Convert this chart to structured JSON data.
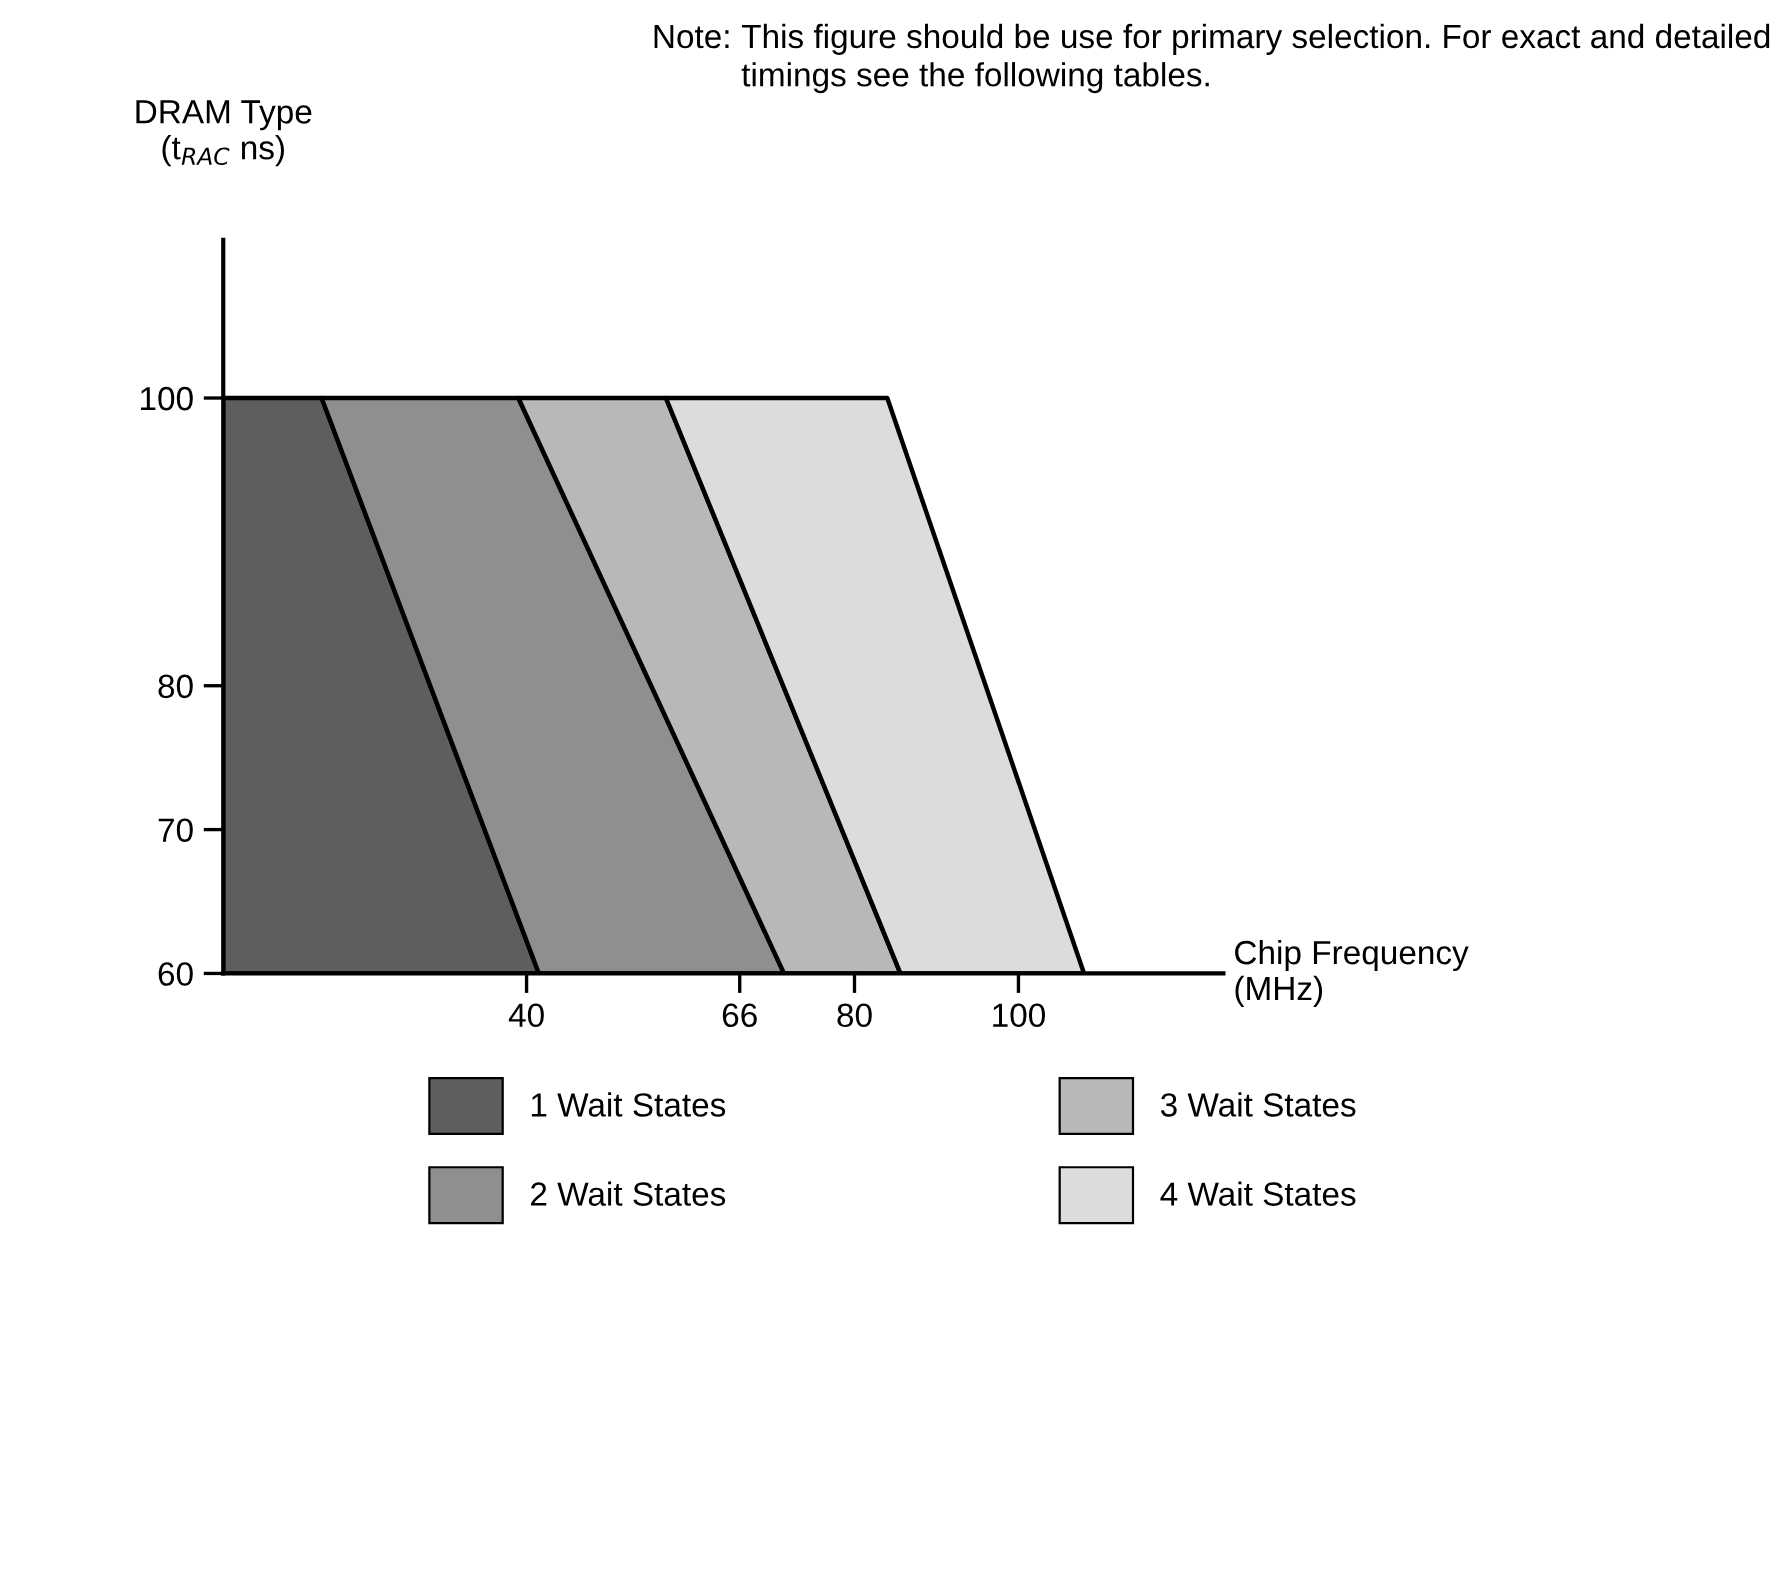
{
  "chart_data": {
    "type": "area",
    "orientation": "horizontal",
    "ylabel": "DRAM Type\n(t$_{RAC}$ ns)",
    "xlabel": "Chip Frequency\n(MHz)",
    "annotations": [
      "Note:",
      "This figure should be use for primary selection. For exact and detailed timings see the following tables."
    ],
    "x": [
      100,
      60
    ],
    "series": [
      {
        "name": "1 Wait States",
        "color": "#5e5e5e",
        "values": [
          15,
          41.5
        ]
      },
      {
        "name": "2 Wait States",
        "color": "#8f8f8f",
        "values": [
          39,
          71.4
        ]
      },
      {
        "name": "3 Wait States",
        "color": "#b8b8b8",
        "values": [
          57,
          85.6
        ]
      },
      {
        "name": "4 Wait States",
        "color": "#dcdcdc",
        "values": [
          84,
          108
        ]
      }
    ],
    "xlim": [
      3,
      125
    ],
    "ylim": [
      60,
      111
    ],
    "xticks": [
      40,
      66,
      80,
      100
    ],
    "yticks": [
      60,
      70,
      80,
      100
    ],
    "grid": false,
    "legend": "bottom"
  }
}
